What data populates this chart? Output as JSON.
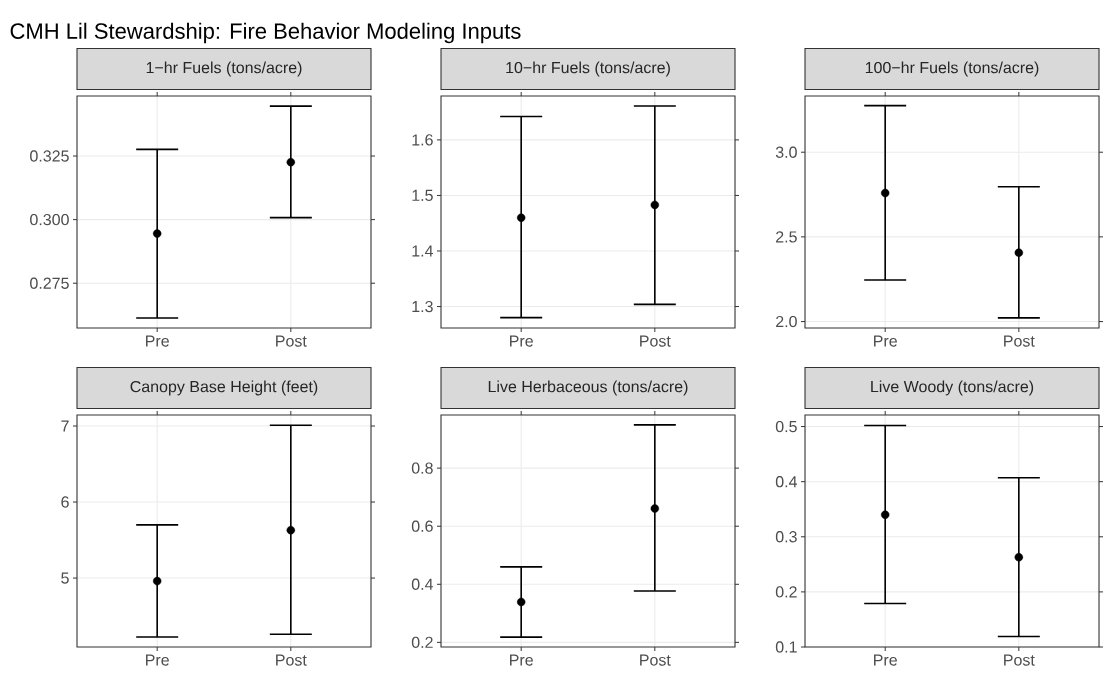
{
  "chart_data": [
    {
      "type": "scatter",
      "title": "1−hr Fuels (tons/acre)",
      "annotations": [
        "CMH Lil Stewardship: Fire Behavior Modeling Inputs"
      ],
      "categories": [
        "Pre",
        "Post"
      ],
      "values": [
        0.2945,
        0.3226
      ],
      "errors": [
        [
          0.2613,
          0.3276
        ],
        [
          0.3008,
          0.3446
        ]
      ],
      "color": "#000000",
      "grid": true,
      "ylim": [
        0.2574,
        0.3486
      ],
      "yticks": [
        0.275,
        {
          "value": 0.3,
          "label": "0.300"
        },
        0.325
      ]
    },
    {
      "type": "scatter",
      "title": "10−hr Fuels (tons/acre)",
      "categories": [
        "Pre",
        "Post"
      ],
      "values": [
        1.46,
        1.483
      ],
      "errors": [
        [
          1.28,
          1.642
        ],
        [
          1.304,
          1.661
        ]
      ],
      "color": "#000000",
      "grid": true,
      "ylim": [
        1.2614,
        1.679
      ],
      "yticks": [
        1.3,
        1.4,
        1.5,
        1.6
      ]
    },
    {
      "type": "scatter",
      "title": "100−hr Fuels (tons/acre)",
      "categories": [
        "Pre",
        "Post"
      ],
      "values": [
        2.759,
        2.407
      ],
      "errors": [
        [
          2.245,
          3.275
        ],
        [
          2.022,
          2.796
        ]
      ],
      "color": "#000000",
      "grid": true,
      "ylim": [
        1.962,
        3.332
      ],
      "yticks": [
        {
          "value": 2.0,
          "label": "2.0"
        },
        2.5,
        {
          "value": 3.0,
          "label": "3.0"
        }
      ]
    },
    {
      "type": "scatter",
      "title": "Canopy Base Height (feet)",
      "categories": [
        "Pre",
        "Post"
      ],
      "values": [
        4.96,
        5.63
      ],
      "errors": [
        [
          4.225,
          5.7
        ],
        [
          4.26,
          7.01
        ]
      ],
      "color": "#000000",
      "grid": true,
      "ylim": [
        4.093,
        7.145
      ],
      "yticks": [
        5,
        6,
        7
      ]
    },
    {
      "type": "scatter",
      "title": "Live Herbaceous (tons/acre)",
      "categories": [
        "Pre",
        "Post"
      ],
      "values": [
        0.339,
        0.661
      ],
      "errors": [
        [
          0.218,
          0.46
        ],
        [
          0.377,
          0.949
        ]
      ],
      "color": "#000000",
      "grid": true,
      "ylim": [
        0.184,
        0.983
      ],
      "yticks": [
        0.2,
        0.4,
        0.6,
        0.8
      ]
    },
    {
      "type": "scatter",
      "title": "Live Woody (tons/acre)",
      "categories": [
        "Pre",
        "Post"
      ],
      "values": [
        0.34,
        0.263
      ],
      "errors": [
        [
          0.179,
          0.502
        ],
        [
          0.119,
          0.407
        ]
      ],
      "color": "#000000",
      "grid": true,
      "ylim": [
        0.1,
        0.521
      ],
      "yticks": [
        0.1,
        0.2,
        0.3,
        0.4,
        0.5
      ]
    }
  ]
}
